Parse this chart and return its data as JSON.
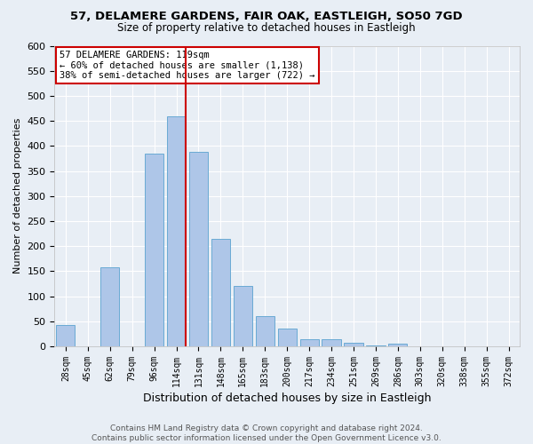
{
  "title": "57, DELAMERE GARDENS, FAIR OAK, EASTLEIGH, SO50 7GD",
  "subtitle": "Size of property relative to detached houses in Eastleigh",
  "xlabel": "Distribution of detached houses by size in Eastleigh",
  "ylabel": "Number of detached properties",
  "categories": [
    "28sqm",
    "45sqm",
    "62sqm",
    "79sqm",
    "96sqm",
    "114sqm",
    "131sqm",
    "148sqm",
    "165sqm",
    "183sqm",
    "200sqm",
    "217sqm",
    "234sqm",
    "251sqm",
    "269sqm",
    "286sqm",
    "303sqm",
    "320sqm",
    "338sqm",
    "355sqm",
    "372sqm"
  ],
  "values": [
    42,
    0,
    158,
    0,
    385,
    460,
    388,
    215,
    120,
    60,
    35,
    15,
    15,
    8,
    2,
    5,
    0,
    0,
    0,
    0,
    0
  ],
  "bar_color": "#aec6e8",
  "bar_edge_color": "#6aaad4",
  "vline_x_index": 5,
  "vline_color": "#cc0000",
  "annotation_text": "57 DELAMERE GARDENS: 119sqm\n← 60% of detached houses are smaller (1,138)\n38% of semi-detached houses are larger (722) →",
  "annotation_box_color": "#ffffff",
  "annotation_box_edge_color": "#cc0000",
  "ylim": [
    0,
    600
  ],
  "yticks": [
    0,
    50,
    100,
    150,
    200,
    250,
    300,
    350,
    400,
    450,
    500,
    550,
    600
  ],
  "footer_line1": "Contains HM Land Registry data © Crown copyright and database right 2024.",
  "footer_line2": "Contains public sector information licensed under the Open Government Licence v3.0.",
  "background_color": "#e8eef5",
  "grid_color": "#ffffff",
  "title_fontsize": 9.5,
  "subtitle_fontsize": 8.5,
  "ylabel_fontsize": 8,
  "xlabel_fontsize": 9
}
